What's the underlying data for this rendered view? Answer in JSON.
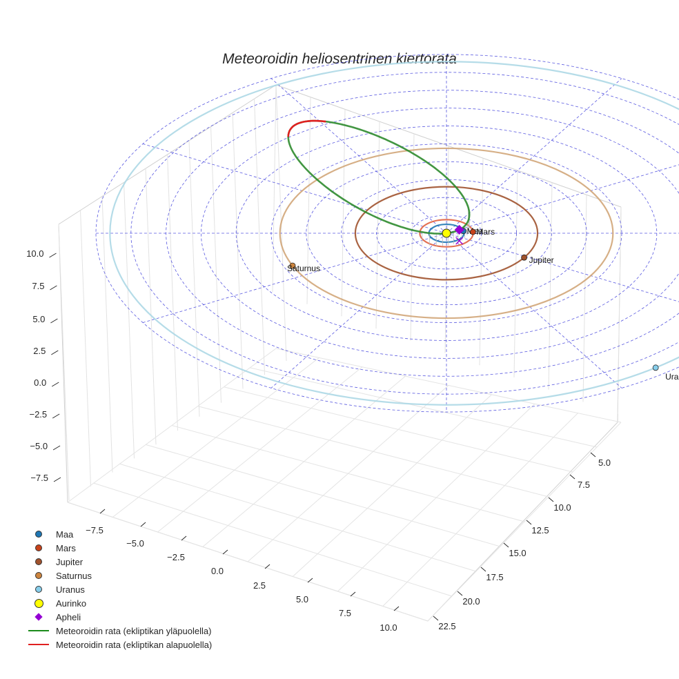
{
  "chart_data": {
    "type": "line",
    "title": "Meteoroidin heliosentrinen kiertorata",
    "projection": "3d",
    "z_ticks": [
      "−7.5",
      "−5.0",
      "−2.5",
      "0.0",
      "2.5",
      "5.0",
      "7.5",
      "10.0"
    ],
    "x_ticks": [
      "−7.5",
      "−5.0",
      "−2.5",
      "0.0",
      "2.5",
      "5.0",
      "7.5",
      "10.0"
    ],
    "y_ticks": [
      "5.0",
      "7.5",
      "10.0",
      "12.5",
      "15.0",
      "17.5",
      "20.0",
      "22.5"
    ],
    "planets": [
      {
        "name": "Maa",
        "orbit_radius_au": 1.0,
        "color": "#1f77b4",
        "orbit_color": "#1f77b4",
        "label": "Maa"
      },
      {
        "name": "Mars",
        "orbit_radius_au": 1.52,
        "color": "#c8421a",
        "orbit_color": "#e06040",
        "label": "Mars"
      },
      {
        "name": "Jupiter",
        "orbit_radius_au": 5.2,
        "color": "#a0522d",
        "orbit_color": "#a0522d",
        "label": "Jupiter"
      },
      {
        "name": "Saturnus",
        "orbit_radius_au": 9.5,
        "color": "#cd853f",
        "orbit_color": "#d2a679",
        "label": "Saturnus"
      },
      {
        "name": "Uranus",
        "orbit_radius_au": 19.2,
        "color": "#87ceeb",
        "orbit_color": "#add8e6",
        "label": "Uranus"
      }
    ],
    "meteoroid_orbit": {
      "above_ecliptic_label": "Meteoroidin rata (ekliptikan yläpuolella)",
      "below_ecliptic_label": "Meteoroidin rata (ekliptikan alapuolella)",
      "above_color": "#2e8b2e",
      "below_color": "#e02020"
    },
    "sun": {
      "name": "Aurinko",
      "color": "#ffff00"
    },
    "aphelion": {
      "name": "Apheli",
      "color": "#9400d3"
    },
    "ecliptic_grid_color": "#3b3bdb"
  },
  "legend": [
    {
      "label": "Maa"
    },
    {
      "label": "Mars"
    },
    {
      "label": "Jupiter"
    },
    {
      "label": "Saturnus"
    },
    {
      "label": "Uranus"
    },
    {
      "label": "Aurinko"
    },
    {
      "label": "Apheli"
    },
    {
      "label": "Meteoroidin rata (ekliptikan yläpuolella)"
    },
    {
      "label": "Meteoroidin rata (ekliptikan alapuolella)"
    }
  ]
}
